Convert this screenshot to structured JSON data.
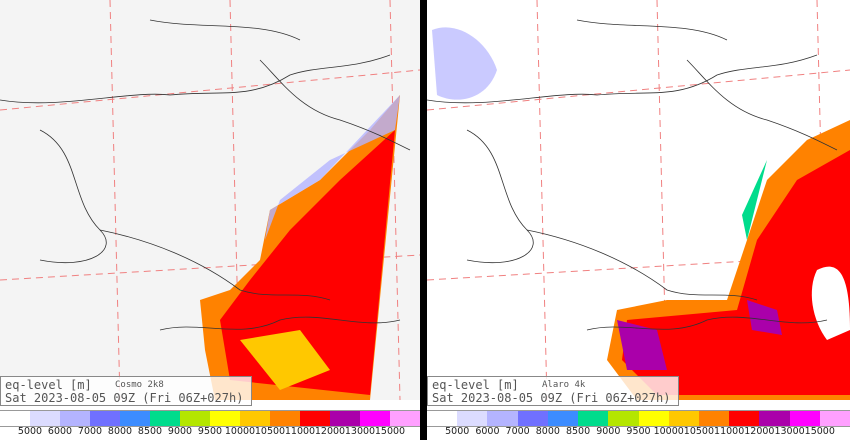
{
  "panels": [
    {
      "title": "eq-level [m]",
      "model": "Cosmo 2k8",
      "time": "Sat 2023-08-05 09Z (Fri 06Z+027h)"
    },
    {
      "title": "eq-level [m]",
      "model": "Alaro 4k",
      "time": "Sat 2023-08-05 09Z (Fri 06Z+027h)"
    }
  ],
  "colorbar": {
    "colors": [
      "#ffffff",
      "#dcdcff",
      "#b4b4ff",
      "#7070ff",
      "#3c8cff",
      "#00dc8c",
      "#b4e600",
      "#ffff00",
      "#ffc800",
      "#ff8200",
      "#ff0000",
      "#aa00aa",
      "#ff00ff",
      "#ffa0ff"
    ],
    "ticks": [
      "5000",
      "6000",
      "7000",
      "8000",
      "8500",
      "9000",
      "9500",
      "10000",
      "10500",
      "11000",
      "12000",
      "13000",
      "15000"
    ]
  }
}
